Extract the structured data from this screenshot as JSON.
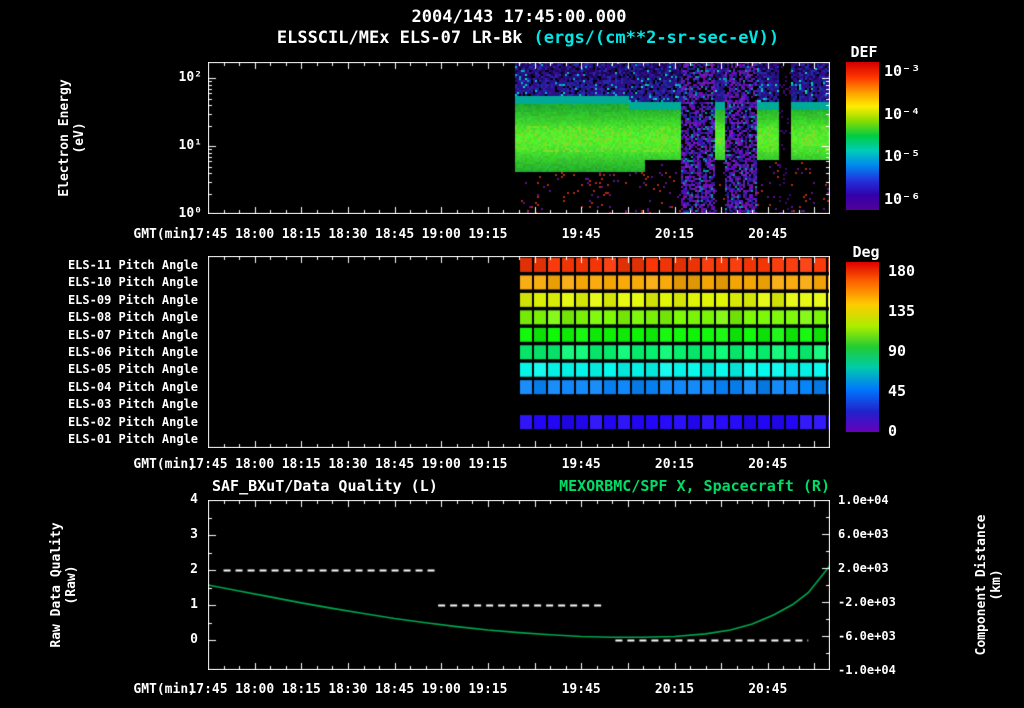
{
  "titles": {
    "datetime": "2004/143 17:45:00.000",
    "instrument": "ELSSCIL/MEx ELS-07 LR-Bk",
    "units": "(ergs/(cm**2-sr-sec-eV))"
  },
  "x_axis": {
    "label": "GMT(min)",
    "start_time": "17:45",
    "total_minutes": 200,
    "tick_labels": [
      "17:45",
      "18:00",
      "18:15",
      "18:30",
      "18:45",
      "19:00",
      "19:15",
      "19:45",
      "20:15",
      "20:45"
    ],
    "tick_minutes": [
      0,
      15,
      30,
      45,
      60,
      75,
      90,
      120,
      150,
      180
    ]
  },
  "colors": {
    "background": "#000000",
    "axis": "#ffffff",
    "units_text": "#00e6e6",
    "right_title_green": "#00dd66",
    "curve_green": "#00a850",
    "quality_dash": "#ffffff"
  },
  "chart_data": [
    {
      "type": "heatmap",
      "name": "electron-energy-spectrogram",
      "y_label_lines": [
        "Electron Energy",
        "(eV)"
      ],
      "y_scale": "log",
      "y_range_ev": [
        1,
        170
      ],
      "y_tick_labels": [
        "10²",
        "10¹",
        "10⁰"
      ],
      "y_tick_log_values": [
        2,
        1,
        0
      ],
      "colorbar": {
        "title": "DEF",
        "scale": "log",
        "tick_labels": [
          "10⁻³",
          "10⁻⁴",
          "10⁻⁵",
          "10⁻⁶"
        ],
        "range_flux": [
          "1e-6",
          "1e-3"
        ]
      },
      "data_start_minute": 99,
      "bands": [
        {
          "desc": "no data before ~19:24",
          "t_min": [
            0,
            99
          ]
        },
        {
          "desc": "intense green band ~1e-4",
          "energy_ev": [
            5,
            45
          ],
          "t_min": [
            99,
            200
          ]
        },
        {
          "desc": "weak blue/purple speckle ~1e-6 to 1e-5",
          "energy_ev": [
            45,
            170
          ],
          "t_min": [
            99,
            200
          ]
        },
        {
          "desc": "purple noisy dropout columns",
          "energy_ev": [
            1,
            170
          ],
          "t_min": [
            152,
            176
          ]
        },
        {
          "desc": "dark gap column",
          "energy_ev": [
            1,
            170
          ],
          "t_min": [
            183,
            187
          ]
        }
      ]
    },
    {
      "type": "heatmap",
      "name": "pitch-angle-panels",
      "colorbar": {
        "title": "Deg",
        "range_deg": [
          0,
          180
        ],
        "tick_labels": [
          "180",
          "135",
          "90",
          "45",
          "0"
        ],
        "tick_values": [
          180,
          135,
          90,
          45,
          0
        ]
      },
      "data_start_minute": 100,
      "rows": [
        {
          "label": "ELS-11 Pitch Angle",
          "pitch_deg": 172
        },
        {
          "label": "ELS-10 Pitch Angle",
          "pitch_deg": 153
        },
        {
          "label": "ELS-09 Pitch Angle",
          "pitch_deg": 136
        },
        {
          "label": "ELS-08 Pitch Angle",
          "pitch_deg": 118
        },
        {
          "label": "ELS-07 Pitch Angle",
          "pitch_deg": 100
        },
        {
          "label": "ELS-06 Pitch Angle",
          "pitch_deg": 80
        },
        {
          "label": "ELS-05 Pitch Angle",
          "pitch_deg": 60
        },
        {
          "label": "ELS-04 Pitch Angle",
          "pitch_deg": 38
        },
        {
          "label": "ELS-03 Pitch Angle",
          "pitch_deg": null
        },
        {
          "label": "ELS-02 Pitch Angle",
          "pitch_deg": 12
        },
        {
          "label": "ELS-01 Pitch Angle",
          "pitch_deg": null
        }
      ]
    },
    {
      "type": "line",
      "name": "data-quality-and-spacecraft-x",
      "left_title": "SAF_BXuT/Data Quality (L)",
      "right_title": "MEXORBMC/SPF X, Spacecraft (R)",
      "left_axis": {
        "label_lines": [
          "Raw Data Quality",
          "(Raw)"
        ],
        "tick_labels": [
          "4",
          "3",
          "2",
          "1",
          "0"
        ],
        "tick_values": [
          4,
          3,
          2,
          1,
          0
        ],
        "range": [
          -0.85,
          4
        ]
      },
      "right_axis": {
        "label_lines": [
          "Component Distance",
          "(km)"
        ],
        "tick_labels": [
          "1.0e+04",
          "6.0e+03",
          "2.0e+03",
          "-2.0e+03",
          "-6.0e+03",
          "-1.0e+04"
        ],
        "tick_values": [
          10000,
          6000,
          2000,
          -2000,
          -6000,
          -10000
        ],
        "range": [
          -10000,
          10000
        ]
      },
      "series": [
        {
          "name": "raw-data-quality",
          "style": "dashed",
          "color": "#ffffff",
          "segments": [
            {
              "quality": 2,
              "t_min": [
                5,
                74
              ]
            },
            {
              "quality": 1,
              "t_min": [
                74,
                127
              ]
            },
            {
              "quality": 0,
              "t_min": [
                131,
                193
              ]
            }
          ]
        },
        {
          "name": "spacecraft-x-distance-km",
          "style": "solid",
          "color": "#00a850",
          "points_t_km": [
            [
              0,
              0
            ],
            [
              10,
              -700
            ],
            [
              20,
              -1400
            ],
            [
              30,
              -2100
            ],
            [
              40,
              -2750
            ],
            [
              50,
              -3350
            ],
            [
              60,
              -3950
            ],
            [
              70,
              -4450
            ],
            [
              80,
              -4900
            ],
            [
              90,
              -5300
            ],
            [
              100,
              -5600
            ],
            [
              110,
              -5850
            ],
            [
              120,
              -6050
            ],
            [
              130,
              -6150
            ],
            [
              140,
              -6150
            ],
            [
              150,
              -6050
            ],
            [
              160,
              -5750
            ],
            [
              168,
              -5300
            ],
            [
              175,
              -4600
            ],
            [
              182,
              -3500
            ],
            [
              188,
              -2300
            ],
            [
              193,
              -900
            ],
            [
              197,
              900
            ],
            [
              200,
              2300
            ]
          ]
        }
      ]
    }
  ]
}
